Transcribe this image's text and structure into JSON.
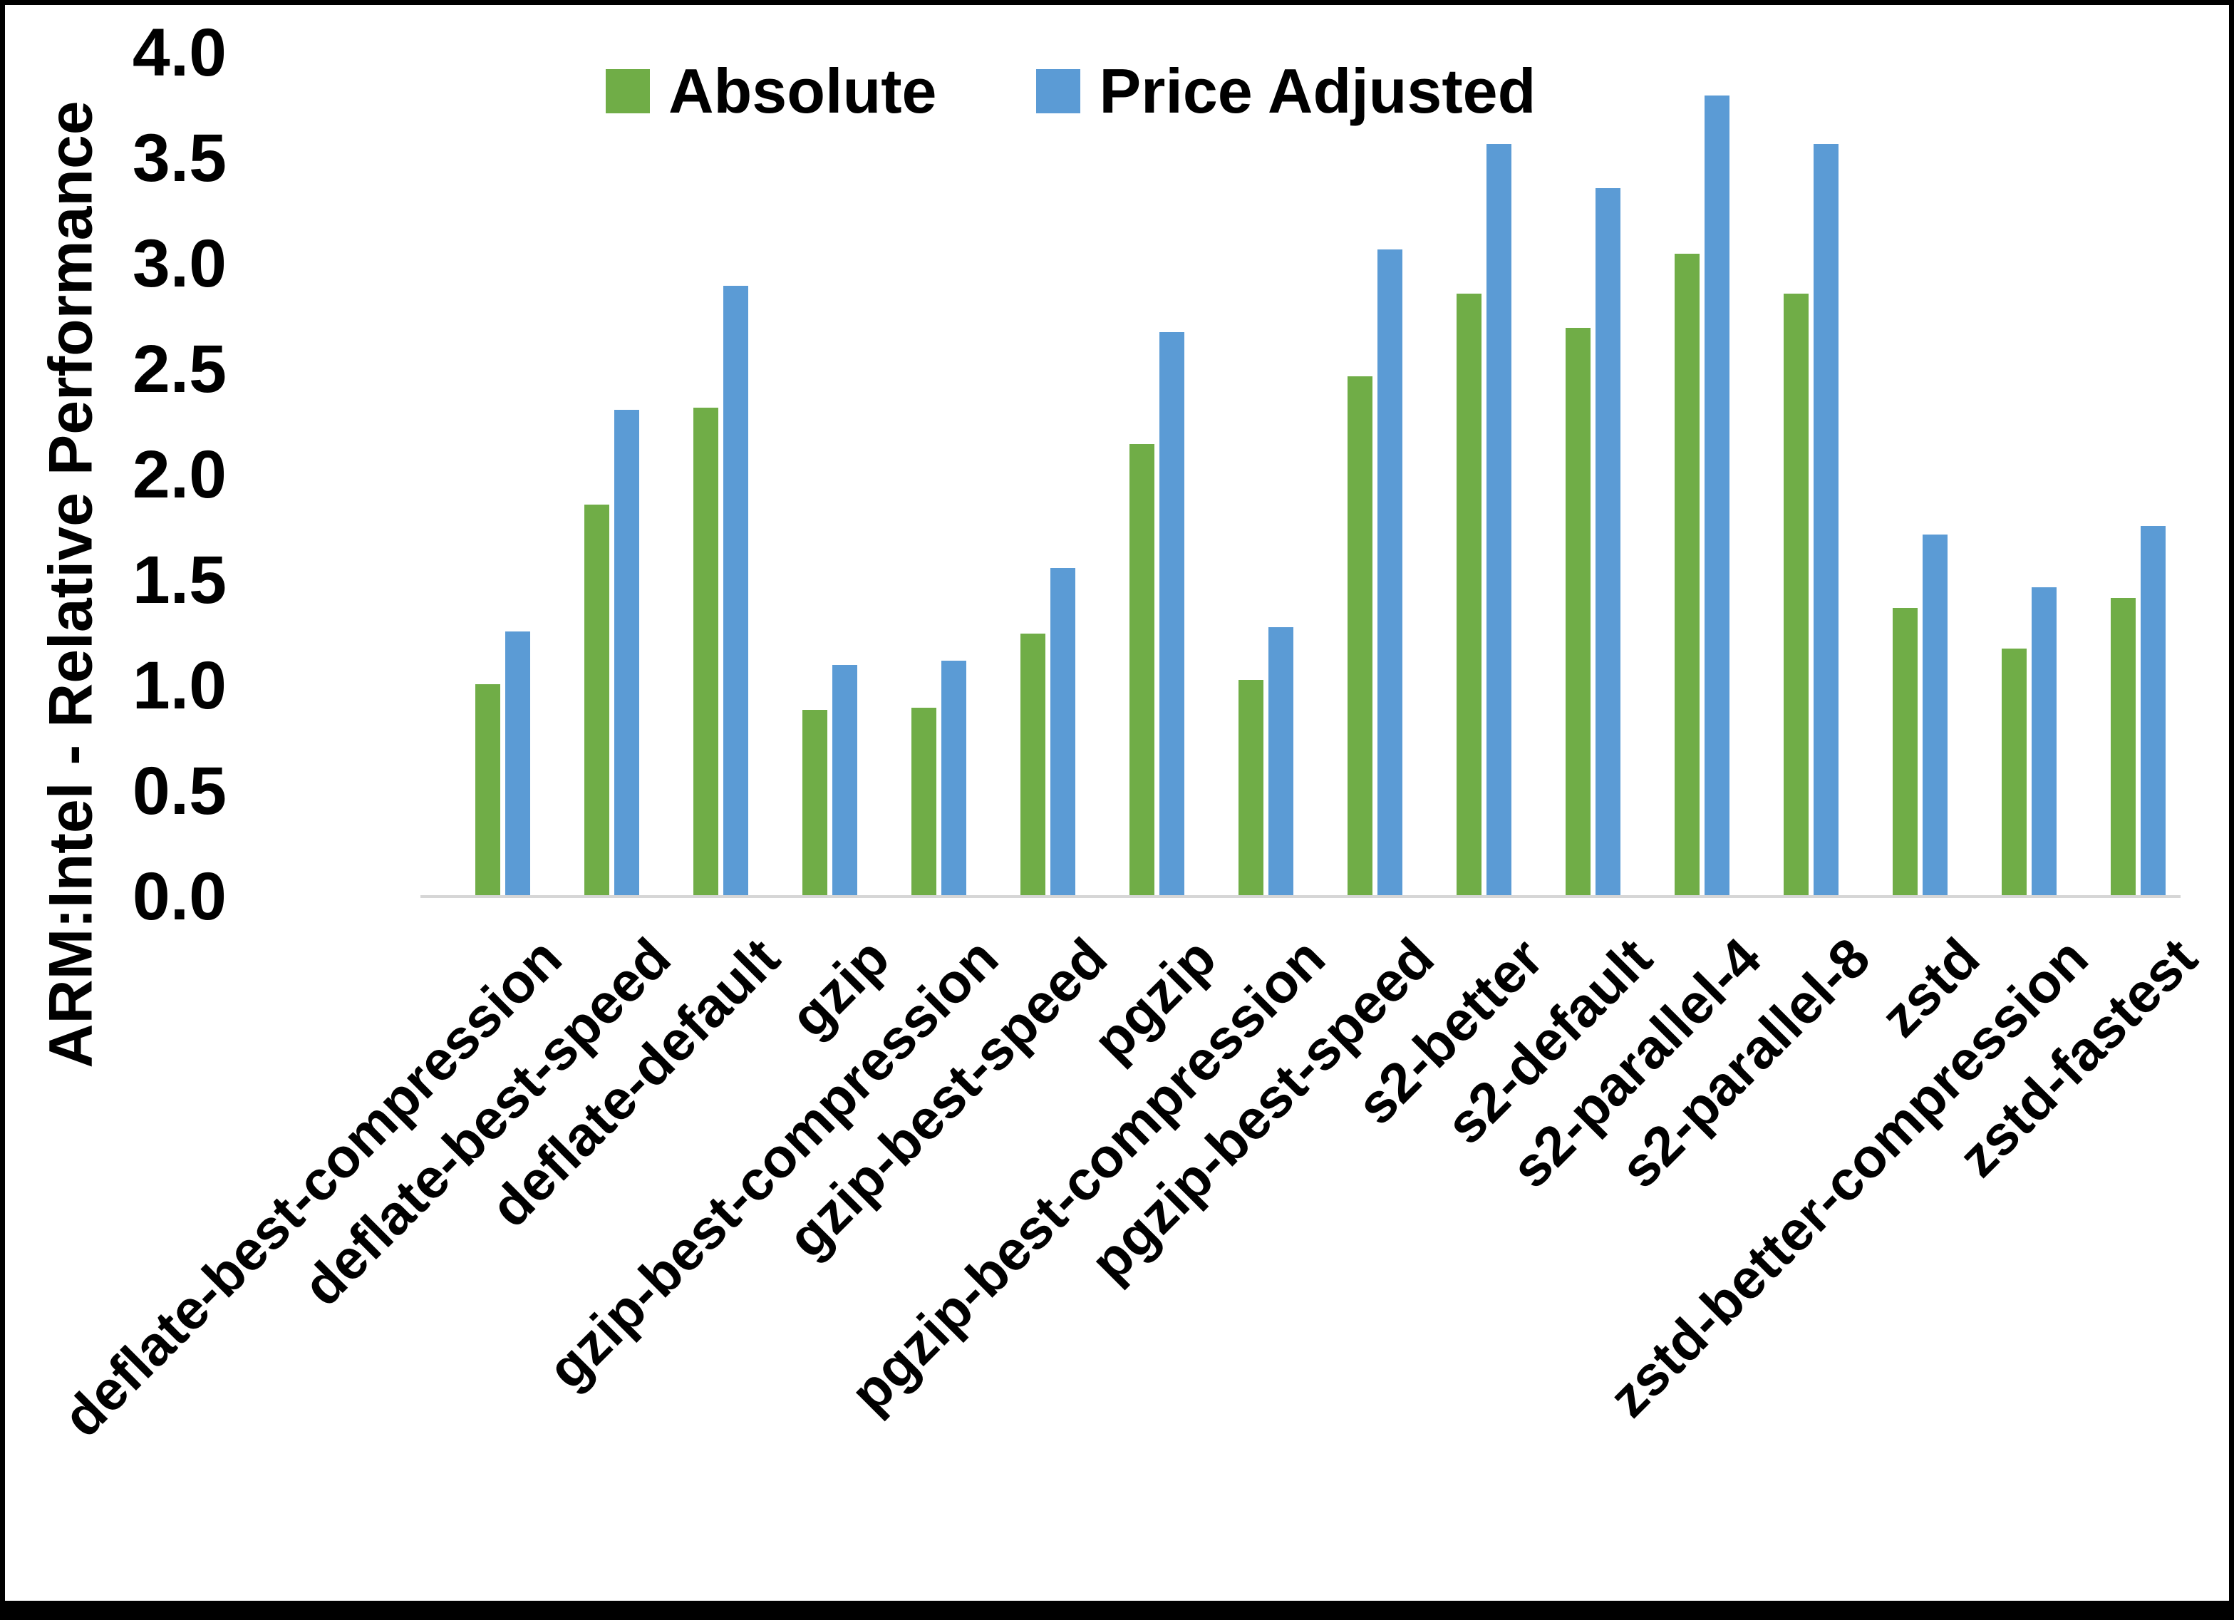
{
  "chart_data": {
    "type": "bar",
    "title": "",
    "ylabel": "ARM:Intel - Relative Performance",
    "xlabel": "",
    "ylim": [
      0.0,
      4.0
    ],
    "ytick_step": 0.5,
    "ytick_labels": [
      "0.0",
      "0.5",
      "1.0",
      "1.5",
      "2.0",
      "2.5",
      "3.0",
      "3.5",
      "4.0"
    ],
    "grid": false,
    "legend_position": "top-center",
    "categories": [
      "deflate-best-compression",
      "deflate-best-speed",
      "deflate-default",
      "gzip",
      "gzip-best-compression",
      "gzip-best-speed",
      "pgzip",
      "pgzip-best-compression",
      "pgzip-best-speed",
      "s2-better",
      "s2-default",
      "s2-parallel-4",
      "s2-parallel-8",
      "zstd",
      "zstd-better-compression",
      "zstd-fastest"
    ],
    "series": [
      {
        "name": "Absolute",
        "color": "#70AD47",
        "values": [
          1.0,
          1.85,
          2.31,
          0.88,
          0.89,
          1.24,
          2.14,
          1.02,
          2.46,
          2.85,
          2.69,
          3.04,
          2.85,
          1.36,
          1.17,
          1.41
        ]
      },
      {
        "name": "Price Adjusted",
        "color": "#5B9BD5",
        "values": [
          1.25,
          2.3,
          2.89,
          1.09,
          1.11,
          1.55,
          2.67,
          1.27,
          3.06,
          3.56,
          3.35,
          3.79,
          3.56,
          1.71,
          1.46,
          1.75
        ]
      }
    ]
  },
  "colors": {
    "background": "#FFFFFF",
    "frame": "#000000",
    "axis_line": "#D6D6D6",
    "text": "#000000"
  }
}
